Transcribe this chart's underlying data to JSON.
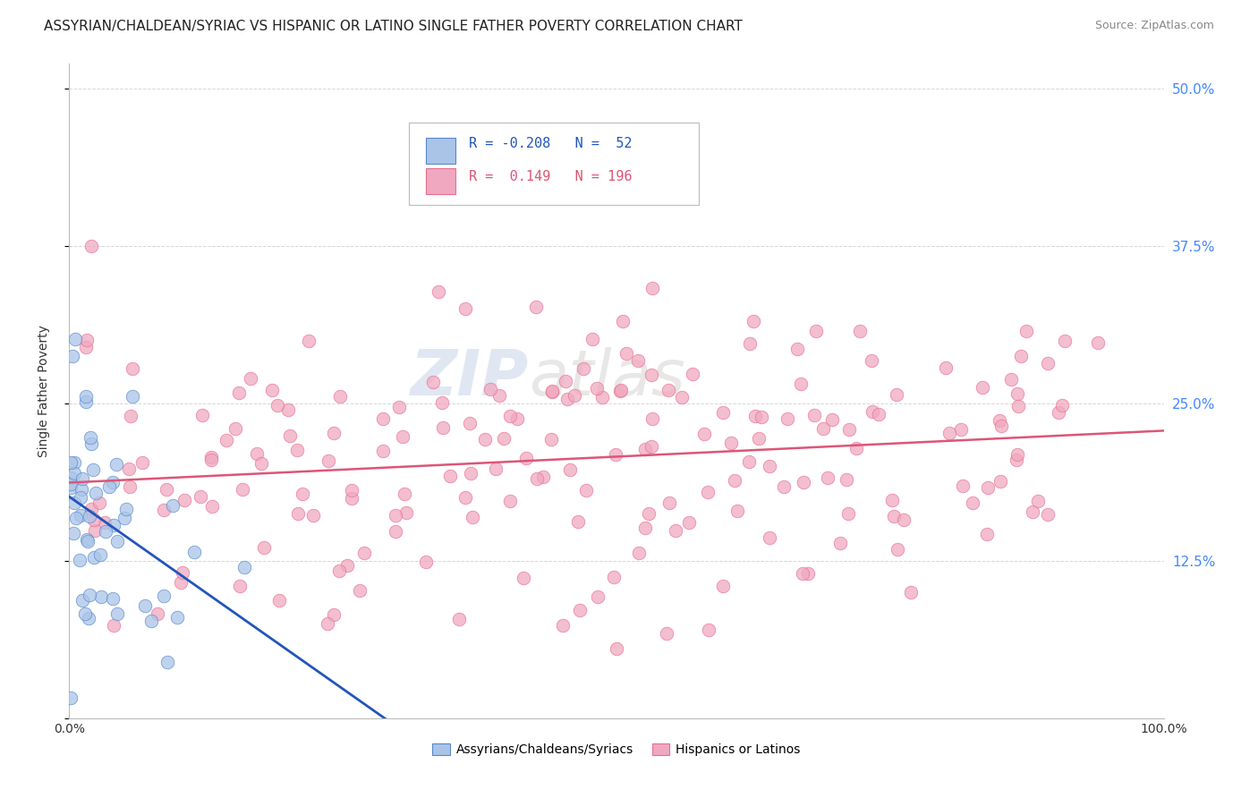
{
  "title": "ASSYRIAN/CHALDEAN/SYRIAC VS HISPANIC OR LATINO SINGLE FATHER POVERTY CORRELATION CHART",
  "source": "Source: ZipAtlas.com",
  "ylabel": "Single Father Poverty",
  "xlim": [
    0.0,
    1.0
  ],
  "ylim": [
    0.0,
    0.52
  ],
  "blue_R": -0.208,
  "blue_N": 52,
  "pink_R": 0.149,
  "pink_N": 196,
  "blue_color": "#aac4e8",
  "pink_color": "#f0a8c0",
  "blue_edge_color": "#5588cc",
  "pink_edge_color": "#e87090",
  "blue_line_color": "#2255bb",
  "pink_line_color": "#dd5577",
  "background_color": "#ffffff",
  "grid_color": "#cccccc",
  "watermark_zip": "ZIP",
  "watermark_atlas": "atlas",
  "legend_label_blue": "Assyrians/Chaldeans/Syriacs",
  "legend_label_pink": "Hispanics or Latinos",
  "title_fontsize": 11,
  "source_fontsize": 9,
  "right_tick_color": "#4488ff"
}
